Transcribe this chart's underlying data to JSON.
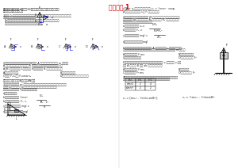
{
  "title": "作業卷題 1",
  "bg_color": "#ffffff",
  "title_color": "#cc0000",
  "figsize": [
    3.0,
    2.12
  ],
  "dpi": 100
}
